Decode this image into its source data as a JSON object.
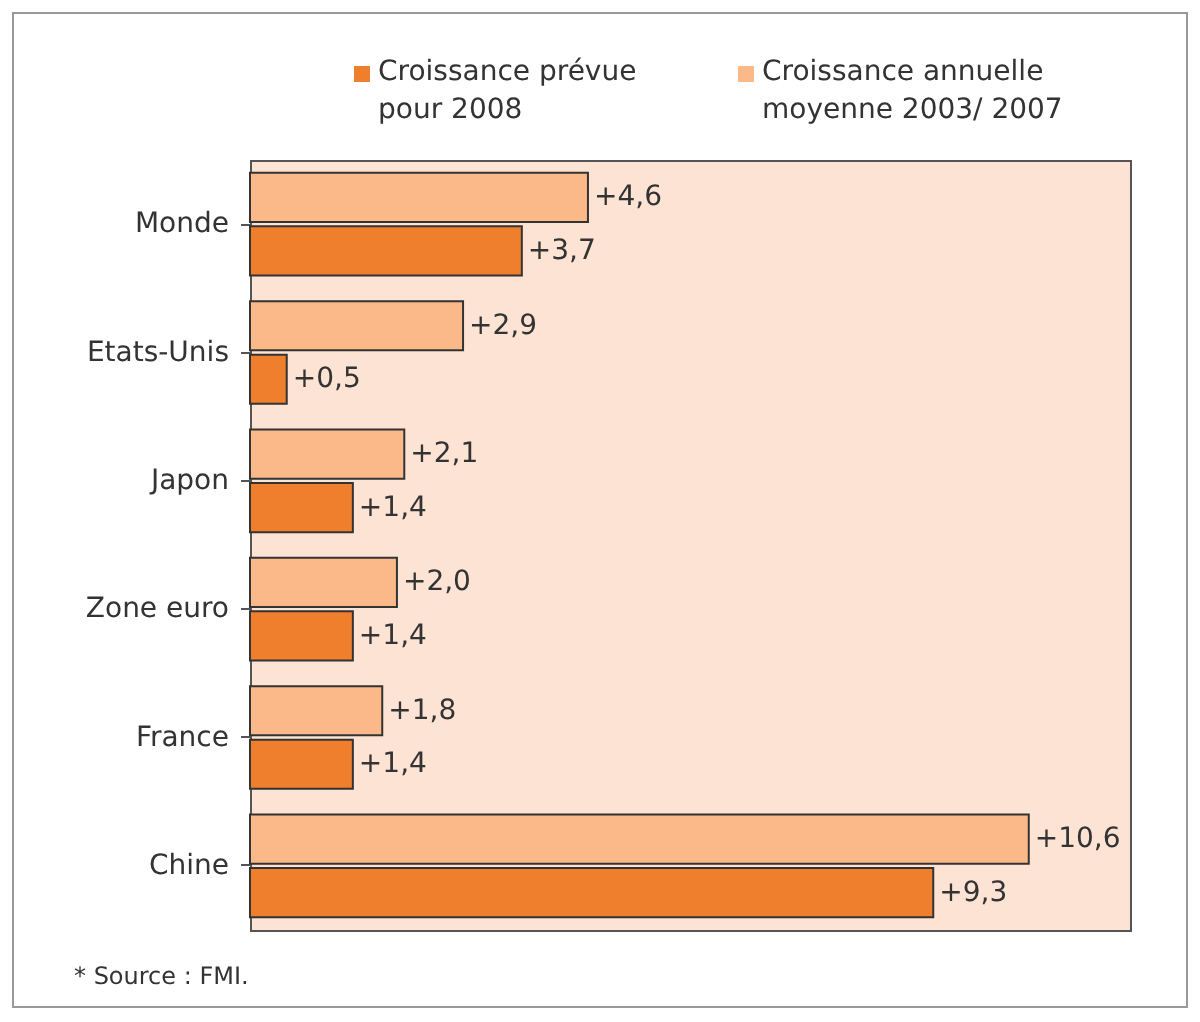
{
  "chart_data": {
    "type": "bar",
    "orientation": "horizontal",
    "legend": "top",
    "categories": [
      "Monde",
      "Etats-Unis",
      "Japon",
      "Zone euro",
      "France",
      "Chine"
    ],
    "series": [
      {
        "name": "Croissance annuelle moyenne 2003/ 2007",
        "color": "#fbb98a",
        "values": [
          4.6,
          2.9,
          2.1,
          2.0,
          1.8,
          10.6
        ],
        "value_labels": [
          "+4,6",
          "+2,9",
          "+2,1",
          "+2,0",
          "+1,8",
          "+10,6"
        ]
      },
      {
        "name": "Croissance prévue pour 2008",
        "color": "#f07f2d",
        "values": [
          3.7,
          0.5,
          1.4,
          1.4,
          1.4,
          9.3
        ],
        "value_labels": [
          "+3,7",
          "+0,5",
          "+1,4",
          "+1,4",
          "+1,4",
          "+9,3"
        ]
      }
    ],
    "annotations": [
      "* Source : FMI."
    ]
  }
}
